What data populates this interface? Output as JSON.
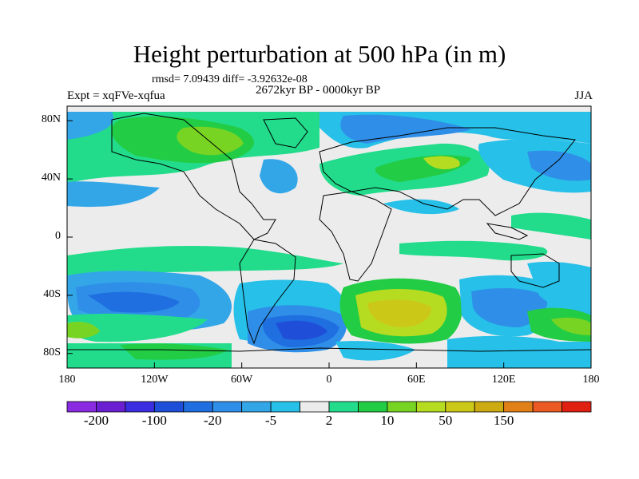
{
  "title": "Height perturbation at 500 hPa (in m)",
  "stats": "rmsd= 7.09439 diff= -3.92632e-08",
  "period": "2672kyr BP - 0000kyr BP",
  "experiment": "Expt = xqFVe-xqfua",
  "season": "JJA",
  "map": {
    "lat_ticks": [
      {
        "label": "80N",
        "value": 80
      },
      {
        "label": "40N",
        "value": 40
      },
      {
        "label": "0",
        "value": 0
      },
      {
        "label": "40S",
        "value": -40
      },
      {
        "label": "80S",
        "value": -80
      }
    ],
    "lon_ticks": [
      {
        "label": "180",
        "value": -180
      },
      {
        "label": "120W",
        "value": -120
      },
      {
        "label": "60W",
        "value": -60
      },
      {
        "label": "0",
        "value": 0
      },
      {
        "label": "60E",
        "value": 60
      },
      {
        "label": "120E",
        "value": 120
      },
      {
        "label": "180",
        "value": 180
      }
    ],
    "lat_range": [
      -90,
      90
    ],
    "lon_range": [
      -180,
      180
    ]
  },
  "colorbar": {
    "colors": [
      "#8a2be2",
      "#6a1fd0",
      "#3b2ee0",
      "#1f4fd8",
      "#1f6fe0",
      "#2f8fe8",
      "#33a6e8",
      "#26c0e8",
      "#ececec",
      "#22dc8c",
      "#22cc44",
      "#77d422",
      "#b6dc22",
      "#ccc818",
      "#ccaa11",
      "#e28018",
      "#ea5a22",
      "#e02010"
    ],
    "labels": [
      {
        "text": "-200",
        "boundary": 1
      },
      {
        "text": "-100",
        "boundary": 3
      },
      {
        "text": "-20",
        "boundary": 5
      },
      {
        "text": "-5",
        "boundary": 7
      },
      {
        "text": "2",
        "boundary": 9
      },
      {
        "text": "10",
        "boundary": 11
      },
      {
        "text": "50",
        "boundary": 13
      },
      {
        "text": "150",
        "boundary": 15
      }
    ]
  }
}
